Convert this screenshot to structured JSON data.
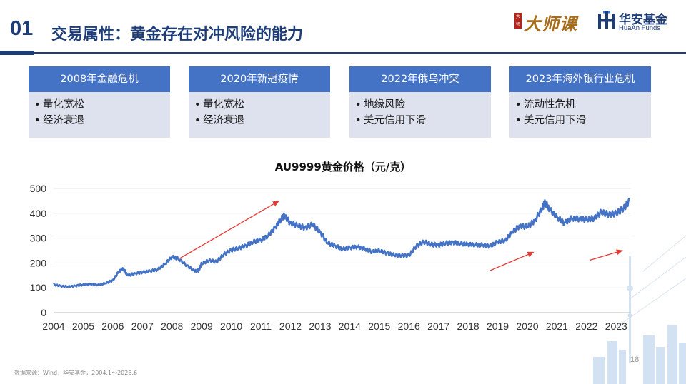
{
  "header": {
    "section_number": "01",
    "title": "交易属性：黄金存在对冲风险的能力",
    "logo_master": {
      "stamp": "大师",
      "text": "大师课"
    },
    "logo_brand": {
      "cn": "华安基金",
      "en": "HuaAn Funds"
    }
  },
  "cards": [
    {
      "title": "2008年金融危机",
      "items": [
        "量化宽松",
        "经济衰退"
      ]
    },
    {
      "title": "2020年新冠疫情",
      "items": [
        "量化宽松",
        "经济衰退"
      ]
    },
    {
      "title": "2022年俄乌冲突",
      "items": [
        "地缘风险",
        "美元信用下滑"
      ]
    },
    {
      "title": "2023年海外银行业危机",
      "items": [
        "流动性危机",
        "美元信用下滑"
      ]
    }
  ],
  "bullet": "•",
  "colors": {
    "navy": "#1d3c78",
    "line": "#4472c4",
    "arrow": "#e53935",
    "card_bg": "#dee2ee"
  },
  "chart_data": {
    "type": "line",
    "title": "AU9999黄金价格（元/克）",
    "xlabel": "",
    "ylabel": "",
    "ylim": [
      0,
      500
    ],
    "yticks": [
      0,
      100,
      200,
      300,
      400,
      500
    ],
    "xlim": [
      2004.0,
      2023.5
    ],
    "xticks": [
      "2004",
      "2005",
      "2006",
      "2007",
      "2008",
      "2009",
      "2010",
      "2011",
      "2012",
      "2013",
      "2014",
      "2015",
      "2016",
      "2017",
      "2018",
      "2019",
      "2020",
      "2021",
      "2022",
      "2023"
    ],
    "grid": "horizontal",
    "series": [
      {
        "x": [
          2004.0,
          2004.25,
          2004.5,
          2004.75,
          2005.0,
          2005.25,
          2005.5,
          2005.75,
          2006.0,
          2006.2,
          2006.35,
          2006.5,
          2006.75,
          2007.0,
          2007.25,
          2007.5,
          2007.75,
          2008.0,
          2008.2,
          2008.5,
          2008.75,
          2008.9,
          2009.0,
          2009.25,
          2009.5,
          2009.75,
          2010.0,
          2010.25,
          2010.5,
          2010.75,
          2011.0,
          2011.25,
          2011.5,
          2011.7,
          2011.8,
          2012.0,
          2012.25,
          2012.5,
          2012.75,
          2013.0,
          2013.25,
          2013.5,
          2013.75,
          2014.0,
          2014.25,
          2014.5,
          2014.75,
          2015.0,
          2015.25,
          2015.5,
          2015.75,
          2016.0,
          2016.25,
          2016.5,
          2016.75,
          2017.0,
          2017.25,
          2017.5,
          2017.75,
          2018.0,
          2018.25,
          2018.5,
          2018.75,
          2019.0,
          2019.25,
          2019.5,
          2019.75,
          2020.0,
          2020.25,
          2020.5,
          2020.6,
          2020.75,
          2021.0,
          2021.25,
          2021.5,
          2021.75,
          2022.0,
          2022.25,
          2022.5,
          2022.75,
          2023.0,
          2023.25,
          2023.45
        ],
        "values": [
          113,
          107,
          105,
          108,
          113,
          115,
          112,
          118,
          130,
          165,
          178,
          150,
          158,
          162,
          168,
          172,
          195,
          225,
          218,
          190,
          168,
          170,
          198,
          210,
          205,
          235,
          252,
          260,
          270,
          285,
          292,
          310,
          345,
          380,
          390,
          360,
          350,
          342,
          355,
          325,
          280,
          270,
          255,
          262,
          265,
          258,
          245,
          250,
          240,
          232,
          230,
          230,
          268,
          285,
          275,
          272,
          280,
          282,
          278,
          275,
          273,
          272,
          268,
          285,
          290,
          325,
          350,
          345,
          370,
          420,
          445,
          415,
          385,
          360,
          380,
          378,
          375,
          380,
          405,
          395,
          400,
          420,
          450
        ]
      }
    ],
    "arrows": [
      {
        "from": [
          2008.25,
          218
        ],
        "to": [
          2011.6,
          449
        ]
      },
      {
        "from": [
          2018.75,
          170
        ],
        "to": [
          2020.2,
          243
        ]
      },
      {
        "from": [
          2022.1,
          211
        ],
        "to": [
          2023.2,
          250
        ]
      }
    ]
  },
  "footer": {
    "source": "数据来源：Wind，华安基金，2004.1～2023.6",
    "page": "18"
  }
}
